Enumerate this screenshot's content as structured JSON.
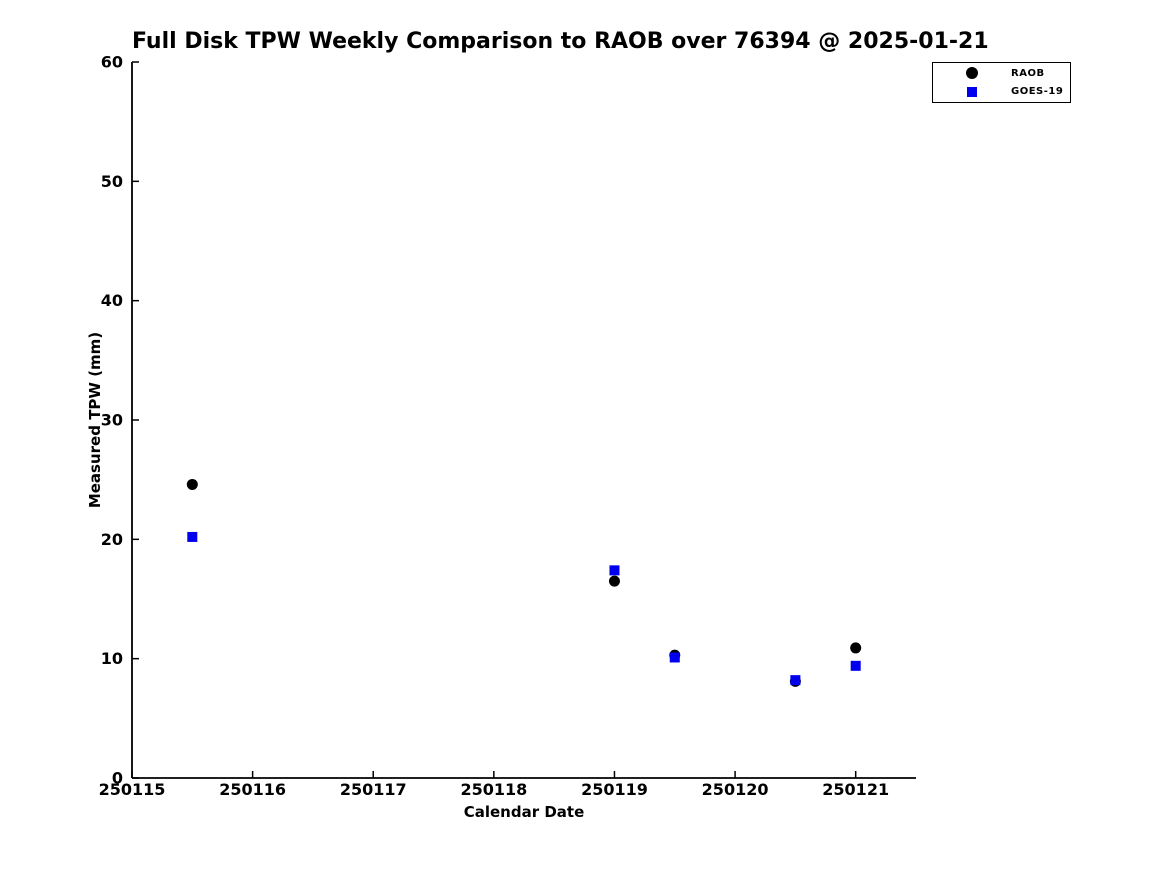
{
  "chart_data": {
    "type": "scatter",
    "title": "Full Disk TPW Weekly Comparison to RAOB over 76394 @ 2025-01-21",
    "xlabel": "Calendar Date",
    "ylabel": "Measured TPW (mm)",
    "xlim": [
      250115,
      250121.5
    ],
    "ylim": [
      0,
      60
    ],
    "xticks": [
      250115,
      250116,
      250117,
      250118,
      250119,
      250120,
      250121
    ],
    "xtick_labels": [
      "250115",
      "250116",
      "250117",
      "250118",
      "250119",
      "250120",
      "250121"
    ],
    "yticks": [
      0,
      10,
      20,
      30,
      40,
      50,
      60
    ],
    "ytick_labels": [
      "0",
      "10",
      "20",
      "30",
      "40",
      "50",
      "60"
    ],
    "grid": false,
    "legend_position": "upper-right-outside",
    "series": [
      {
        "name": "RAOB",
        "marker": "circle",
        "color": "#000000",
        "x": [
          250115.5,
          250119.0,
          250119.5,
          250120.5,
          250121.0
        ],
        "y": [
          24.6,
          16.5,
          10.3,
          8.1,
          10.9
        ]
      },
      {
        "name": "GOES-19",
        "marker": "square",
        "color": "#0000ee",
        "x": [
          250115.5,
          250119.0,
          250119.5,
          250120.5,
          250121.0
        ],
        "y": [
          20.2,
          17.4,
          10.1,
          8.2,
          9.4
        ]
      }
    ]
  },
  "colors": {
    "background": "#ffffff",
    "axis": "#000000",
    "raob": "#000000",
    "goes19": "#0000ee"
  }
}
